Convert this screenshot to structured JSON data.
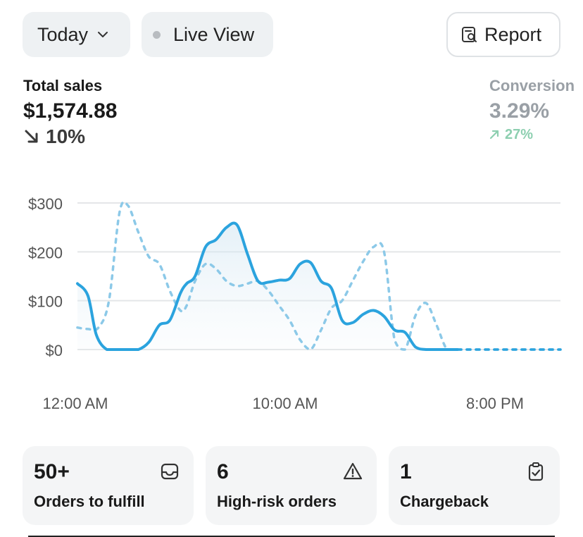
{
  "toolbar": {
    "date_label": "Today",
    "live_label": "Live View",
    "report_label": "Report"
  },
  "metrics": {
    "sales": {
      "label": "Total sales",
      "value": "$1,574.88",
      "change": "10%",
      "direction": "down"
    },
    "conversion": {
      "label": "Conversion",
      "value": "3.29%",
      "change": "27%",
      "direction": "up"
    }
  },
  "chart_data": {
    "type": "line",
    "x_tick_labels": [
      "12:00 AM",
      "10:00 AM",
      "8:00 PM"
    ],
    "y_tick_labels": [
      "$300",
      "$200",
      "$100",
      "$0"
    ],
    "ylim": [
      0,
      300
    ],
    "xlim": [
      0,
      23
    ],
    "grid": true,
    "series": [
      {
        "style": "solid",
        "color": "#2ba3de",
        "x": [
          0,
          0.5,
          0.9,
          1.4,
          1.9,
          2.4,
          2.9,
          3.4,
          3.9,
          4.4,
          4.9,
          5.2,
          5.6,
          6.1,
          6.6,
          7.1,
          7.6,
          8.1,
          8.6,
          9.1,
          9.6,
          10.1,
          10.6,
          11.1,
          11.6,
          12.1,
          12.6,
          13.1,
          13.6,
          14.1,
          14.6,
          15.1,
          15.6,
          16.1,
          16.6,
          17.1,
          17.6,
          18.1
        ],
        "y": [
          135,
          110,
          30,
          0,
          0,
          0,
          0,
          15,
          50,
          60,
          115,
          135,
          150,
          210,
          225,
          250,
          255,
          195,
          140,
          138,
          142,
          145,
          175,
          178,
          140,
          125,
          60,
          55,
          72,
          80,
          68,
          40,
          35,
          5,
          0,
          0,
          0,
          0
        ]
      },
      {
        "style": "dashed",
        "color": "#8cc9e8",
        "x": [
          0,
          0.5,
          1.0,
          1.5,
          2.0,
          2.4,
          2.9,
          3.4,
          3.9,
          4.4,
          4.9,
          5.2,
          5.6,
          6.1,
          6.6,
          7.1,
          7.6,
          8.1,
          8.6,
          9.1,
          9.6,
          10.1,
          10.6,
          11.1,
          11.6,
          12.1,
          12.6,
          13.1,
          13.6,
          14.1,
          14.6,
          15.1,
          15.6,
          16.1,
          16.6,
          17.1,
          17.6,
          18.1,
          20,
          23
        ],
        "y": [
          45,
          42,
          45,
          100,
          280,
          295,
          240,
          190,
          175,
          120,
          80,
          90,
          140,
          175,
          165,
          140,
          130,
          135,
          140,
          120,
          90,
          60,
          20,
          0,
          40,
          85,
          100,
          140,
          180,
          210,
          200,
          20,
          0,
          70,
          95,
          50,
          0,
          0,
          0,
          0
        ]
      }
    ]
  },
  "cards": [
    {
      "count": "50+",
      "label": "Orders to fulfill",
      "icon": "inbox-icon"
    },
    {
      "count": "6",
      "label": "High-risk orders",
      "icon": "warning-icon"
    },
    {
      "count": "1",
      "label": "Chargeback",
      "icon": "clipboard-check-icon"
    }
  ]
}
